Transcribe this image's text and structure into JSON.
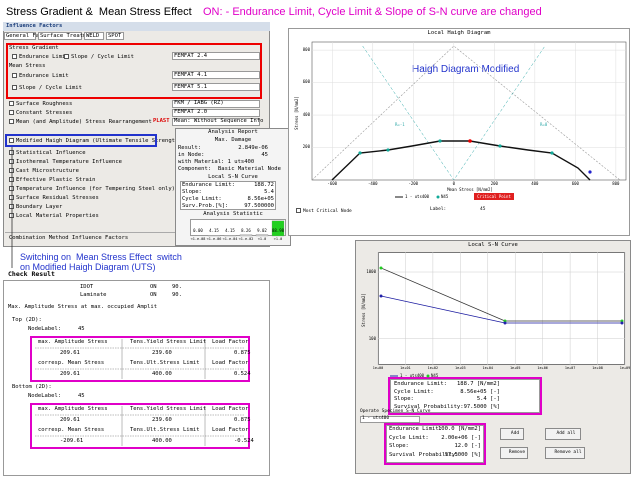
{
  "header": {
    "title": "Stress Gradient &  Mean Stress Effect",
    "highlight": "ON: - Endurance Limit, Cycle Limit & Slope of S-N curve are changed"
  },
  "influence": {
    "title": "Influence Factors",
    "tabs": [
      "General Factors",
      "Surface Treatment",
      "WELD",
      "SPOT"
    ],
    "stress_gradient": {
      "label": "Stress Gradient",
      "endurance": "Endurance Limit",
      "slope": "Slope / Cycle Limit",
      "method": "FEMFAT 2.4"
    },
    "mean_stress": {
      "label": "Mean Stress",
      "endurance": "Endurance Limit",
      "endurance_method": "FEMFAT 4.1",
      "slope": "Slope / Cycle Limit",
      "slope_method": "FEMFAT 5.1"
    },
    "options": [
      {
        "label": "Surface Roughness",
        "value": "FKM / IABG (RZ)"
      },
      {
        "label": "Constant Stresses",
        "value": "FEMFAT 2.0"
      },
      {
        "label": "Mean (and Amplitude) Stress Rearrangement",
        "flag": "PLAST",
        "value": "Mean: Without Sequence Info"
      }
    ],
    "haigh_option": "Modified Haigh Diagram (Ultimate Tensile Strength)",
    "more": [
      "Statistical Influence",
      "Isothermal Temperature Influence",
      "Cast Microstructure",
      "Effective Plastic Strain",
      "Temperature Influence (for Tempering Steel only)",
      "Surface Residual Stresses",
      "Boundary Layer",
      "Local Material Properties"
    ],
    "combination": "Combination Method Influence Factors"
  },
  "annotation": [
    "Switching on  Mean Stress Effect  switch",
    "on Modified Haigh Diagram (UTS)"
  ],
  "check_result": {
    "title": "Check Result",
    "rows": [
      [
        "IDOT",
        "ON",
        "90."
      ],
      [
        "Laminate",
        "ON",
        "90."
      ]
    ],
    "heading": "Max. Amplitude Stress at max. occupied Amplit",
    "top": {
      "label": "Top (2D):",
      "node": [
        "NodeLabel:",
        "45"
      ],
      "rows": [
        [
          "max. Amplitude Stress",
          "Tens.Yield Stress Limit",
          "Load Factor"
        ],
        [
          "209.61",
          "239.60",
          "0.875"
        ],
        [
          "corresp. Mean Stress",
          "Tens.Ult.Stress Limit",
          "Load Factor"
        ],
        [
          "209.61",
          "400.00",
          "0.524"
        ]
      ]
    },
    "bottom": {
      "label": "Bottom (2D):",
      "node": [
        "NodeLabel:",
        "45"
      ],
      "rows": [
        [
          "max. Amplitude Stress",
          "Tens.Yield Stress Limit",
          "Load Factor"
        ],
        [
          "209.61",
          "239.60",
          "0.875"
        ],
        [
          "corresp. Mean Stress",
          "Tens.Ult.Stress Limit",
          "Load Factor"
        ],
        [
          "-209.61",
          "400.00",
          "-0.524"
        ]
      ]
    }
  },
  "report": {
    "title": "Analysis Report",
    "section": "Max. Damage",
    "rows": [
      [
        "Result:",
        "2.849e-06"
      ],
      [
        "in Node:",
        "45"
      ]
    ],
    "material": "with Material: 1 uts400",
    "component": [
      "Component:",
      "Basic Material Node"
    ],
    "sn_title": "Local S-N Curve",
    "sn_rows": [
      [
        "Endurance Limit:",
        "188.72"
      ],
      [
        "Slope:",
        "5.4"
      ],
      [
        "Cycle Limit:",
        "8.56e+05"
      ],
      [
        "Surv.Prob.[%]:",
        "97.500000"
      ]
    ],
    "stat_title": "Analysis Statistic",
    "bars": {
      "categories": [
        "<1.e-08",
        "<1.e-06",
        "<1.e-04",
        "<1.e-02",
        "<1.0",
        ">1.0"
      ],
      "values": [
        0,
        4.15,
        4.15,
        8.26,
        9.02,
        88.98
      ],
      "value_labels": [
        "0.00",
        "4.15",
        "4.15",
        "8.26",
        "9.02",
        "88.98"
      ],
      "ylim": [
        0,
        100
      ]
    }
  },
  "haigh": {
    "title": "Local Haigh Diagram",
    "annotation": "Haigh Diagram Modified",
    "ylabel": "Stress [N/mm2]",
    "xlabel": "Mean Stress [N/mm2]",
    "xlim": [
      -700,
      850
    ],
    "ylim": [
      0,
      850
    ],
    "xticks": [
      -600,
      -400,
      -200,
      0,
      200,
      400,
      600,
      800
    ],
    "yticks": [
      200,
      400,
      600,
      800
    ],
    "r_labels": [
      "R=-1",
      "R=0"
    ],
    "legend": [
      "1 - uts400",
      "N45",
      "Critical Point"
    ],
    "critical": "Most Critical Node",
    "label_text": "Label:",
    "label_value": "45"
  },
  "sn": {
    "title": "Local S-N Curve",
    "ylabel": "Stress [N/mm2]",
    "ylim": [
      40,
      2000
    ],
    "yticks": [
      100,
      1000
    ],
    "xlim": [
      1,
      1000000000
    ],
    "xticks": [
      {
        "value": 1,
        "label": "1e+00"
      },
      {
        "value": 10,
        "label": "1e+01"
      },
      {
        "value": 100,
        "label": "1e+02"
      },
      {
        "value": 1000,
        "label": "1e+03"
      },
      {
        "value": 10000,
        "label": "1e+04"
      },
      {
        "value": 100000,
        "label": "1e+05"
      },
      {
        "value": 1000000,
        "label": "1e+06"
      },
      {
        "value": 10000000,
        "label": "1e+07"
      },
      {
        "value": 100000000,
        "label": "1e+08"
      },
      {
        "value": 1000000000,
        "label": "1e+09"
      }
    ],
    "legend": [
      "1 - uts400",
      "N45"
    ],
    "info": [
      [
        "Endurance Limit:",
        "188.7 [N/mm2]"
      ],
      [
        "Cycle Limit:",
        "8.56e+05 [-]"
      ],
      [
        "Slope:",
        "5.4 [-]"
      ],
      [
        "Survival Probability:",
        "97.5000 [%]"
      ]
    ],
    "operate": "Operate Specimen S-N Curve",
    "specimen": "1 - uts400",
    "spec": [
      [
        "Endurance Limit:",
        "100.0 [N/mm2]"
      ],
      [
        "Cycle Limit:",
        "2.00e+06 [-]"
      ],
      [
        "Slope:",
        "12.0 [-]"
      ],
      [
        "Survival Probability:",
        "97.5000 [%]"
      ]
    ],
    "buttons": [
      "Add",
      "Add all",
      "Remove",
      "Remove all"
    ]
  }
}
